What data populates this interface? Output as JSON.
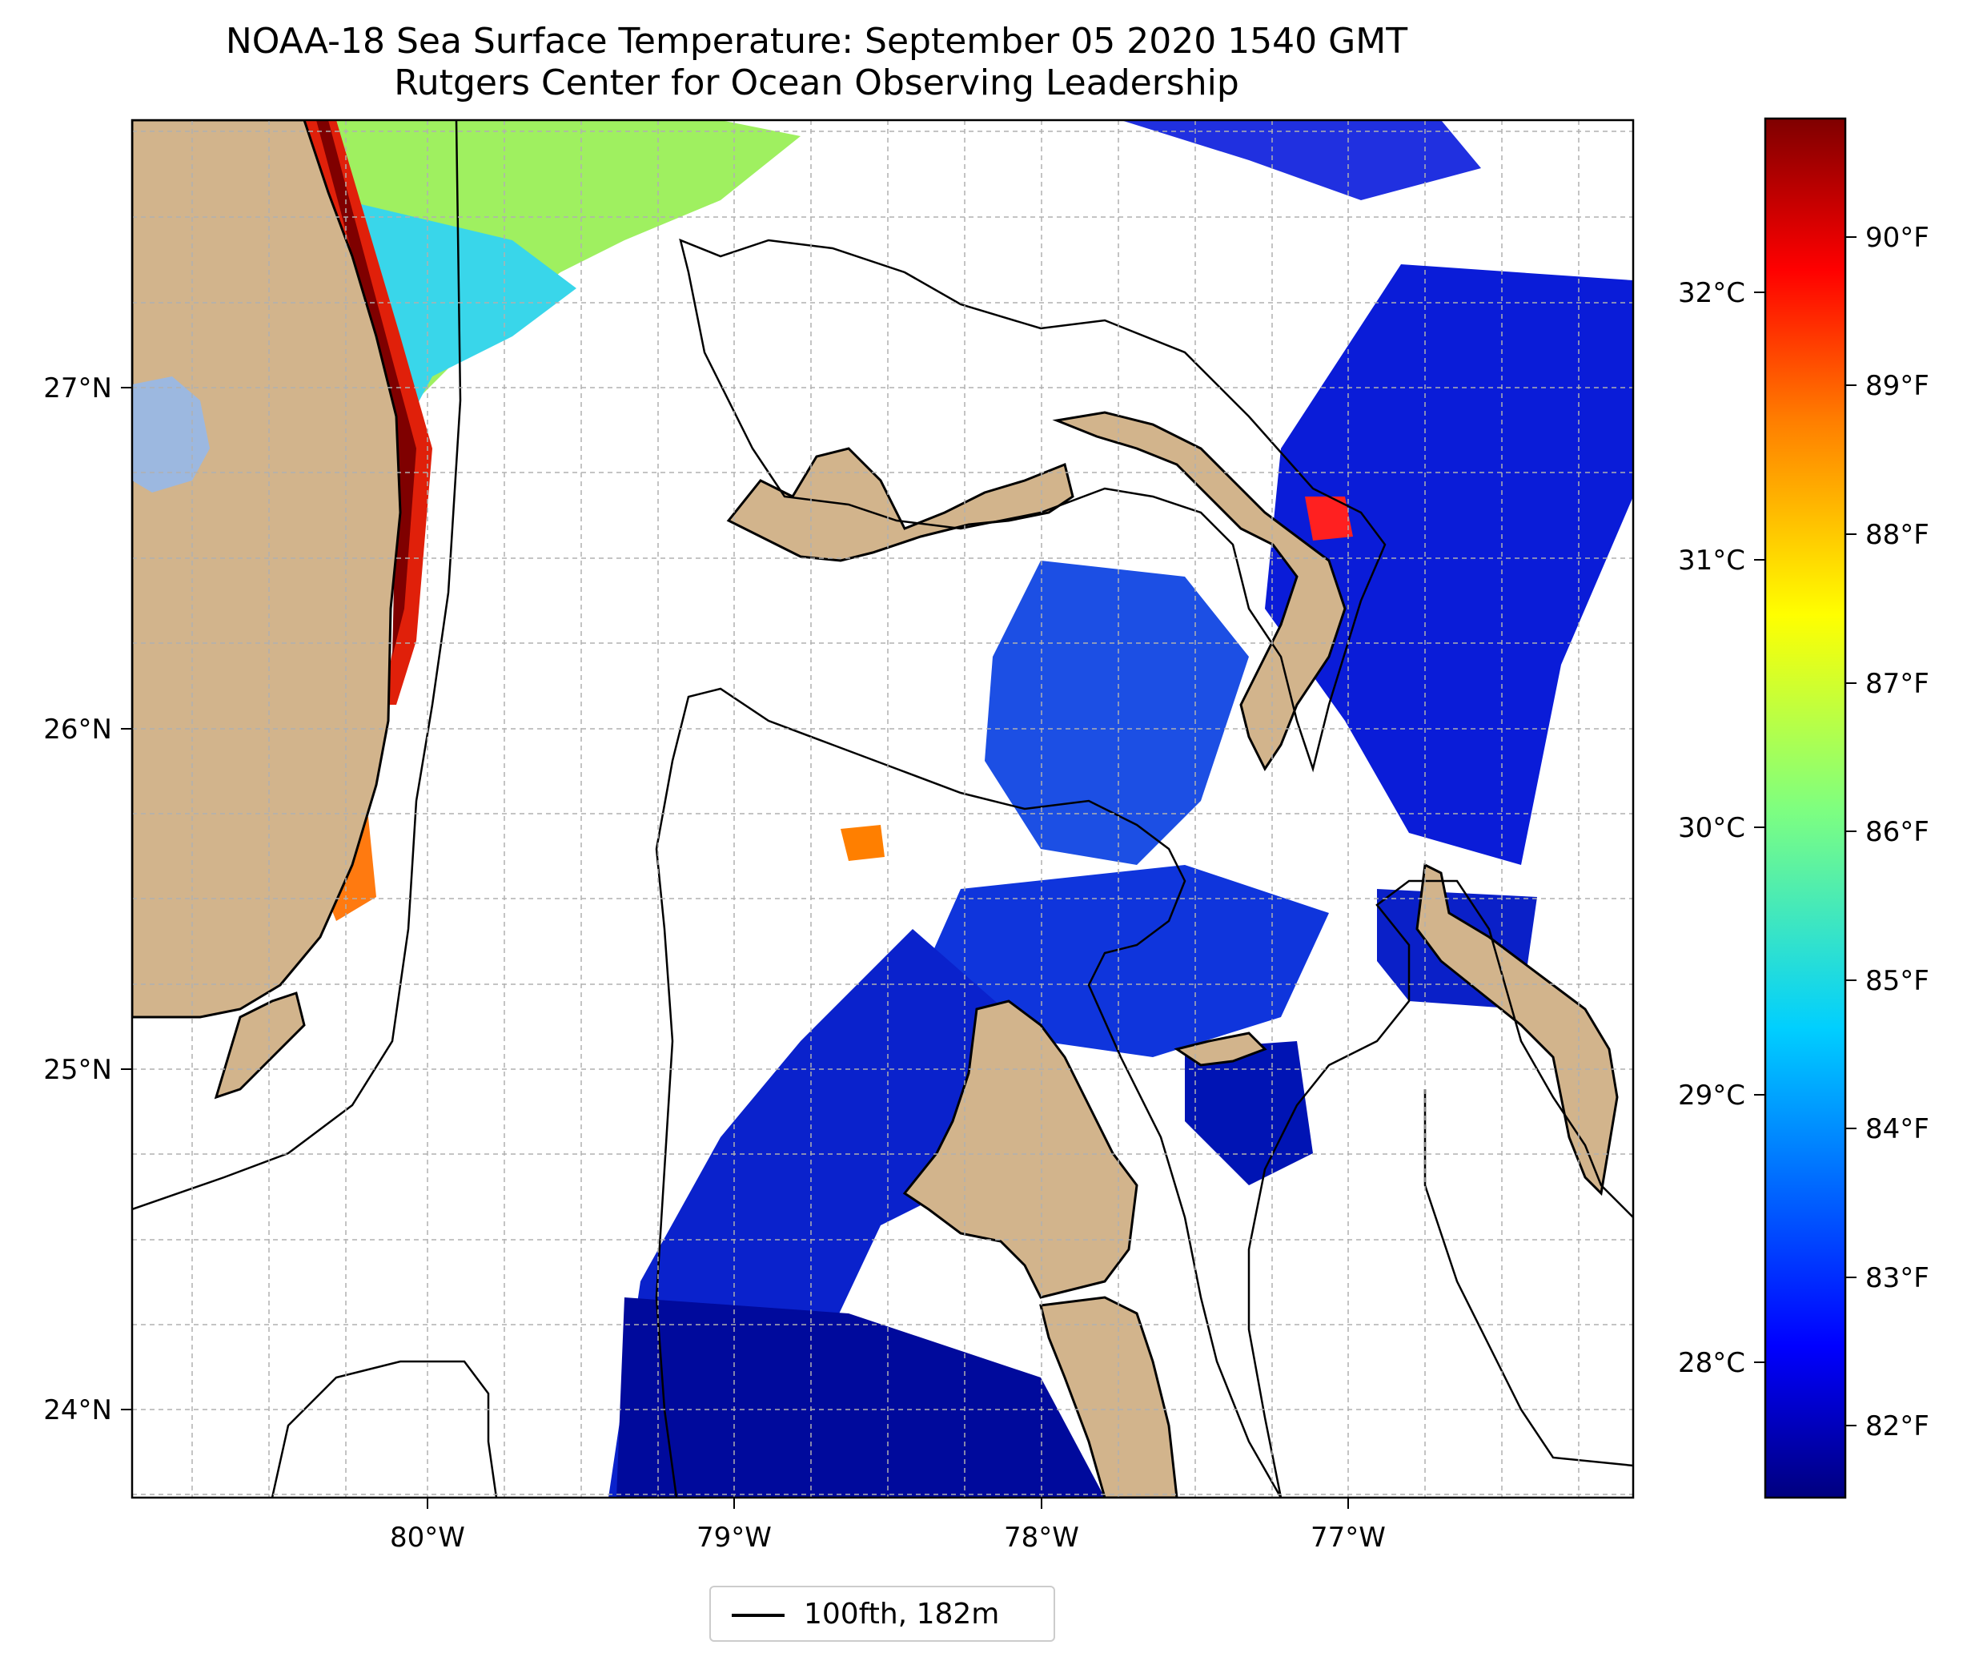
{
  "title_line1": "NOAA-18 Sea Surface Temperature: September 05 2020 1540 GMT",
  "title_line2": "Rutgers Center for Ocean Observing Leadership",
  "lon_labels": [
    "80°W",
    "79°W",
    "78°W",
    "77°W"
  ],
  "lat_labels": [
    "27°N",
    "26°N",
    "25°N",
    "24°N"
  ],
  "colorbar": {
    "celsius_labels": [
      "32°C",
      "31°C",
      "30°C",
      "29°C",
      "28°C"
    ],
    "fahrenheit_labels": [
      "90°F",
      "89°F",
      "88°F",
      "87°F",
      "86°F",
      "85°F",
      "84°F",
      "83°F",
      "82°F"
    ]
  },
  "legend": {
    "label": "100fth, 182m"
  },
  "colors": {
    "land": "#d2b48c",
    "lake": "#9cb8e0",
    "cloud_mask": "#ffffff",
    "jet_scale": [
      "#00007f",
      "#0000ff",
      "#007fff",
      "#00ffff",
      "#7fff7f",
      "#ffff00",
      "#ff7f00",
      "#ff0000",
      "#7f0000"
    ]
  }
}
